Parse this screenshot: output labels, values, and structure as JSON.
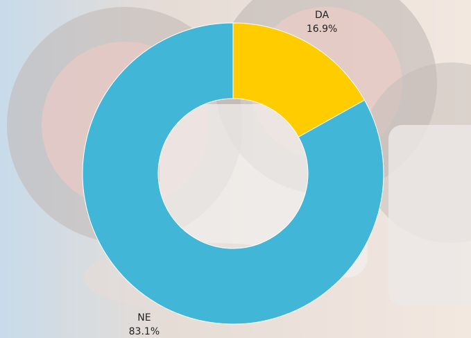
{
  "chart_data": {
    "type": "donut",
    "categories": [
      "DA",
      "NE"
    ],
    "values": [
      16.9,
      83.1
    ],
    "value_labels": [
      "16.9%",
      "83.1%"
    ],
    "colors": [
      "#ffcc00",
      "#41b6d6"
    ]
  }
}
